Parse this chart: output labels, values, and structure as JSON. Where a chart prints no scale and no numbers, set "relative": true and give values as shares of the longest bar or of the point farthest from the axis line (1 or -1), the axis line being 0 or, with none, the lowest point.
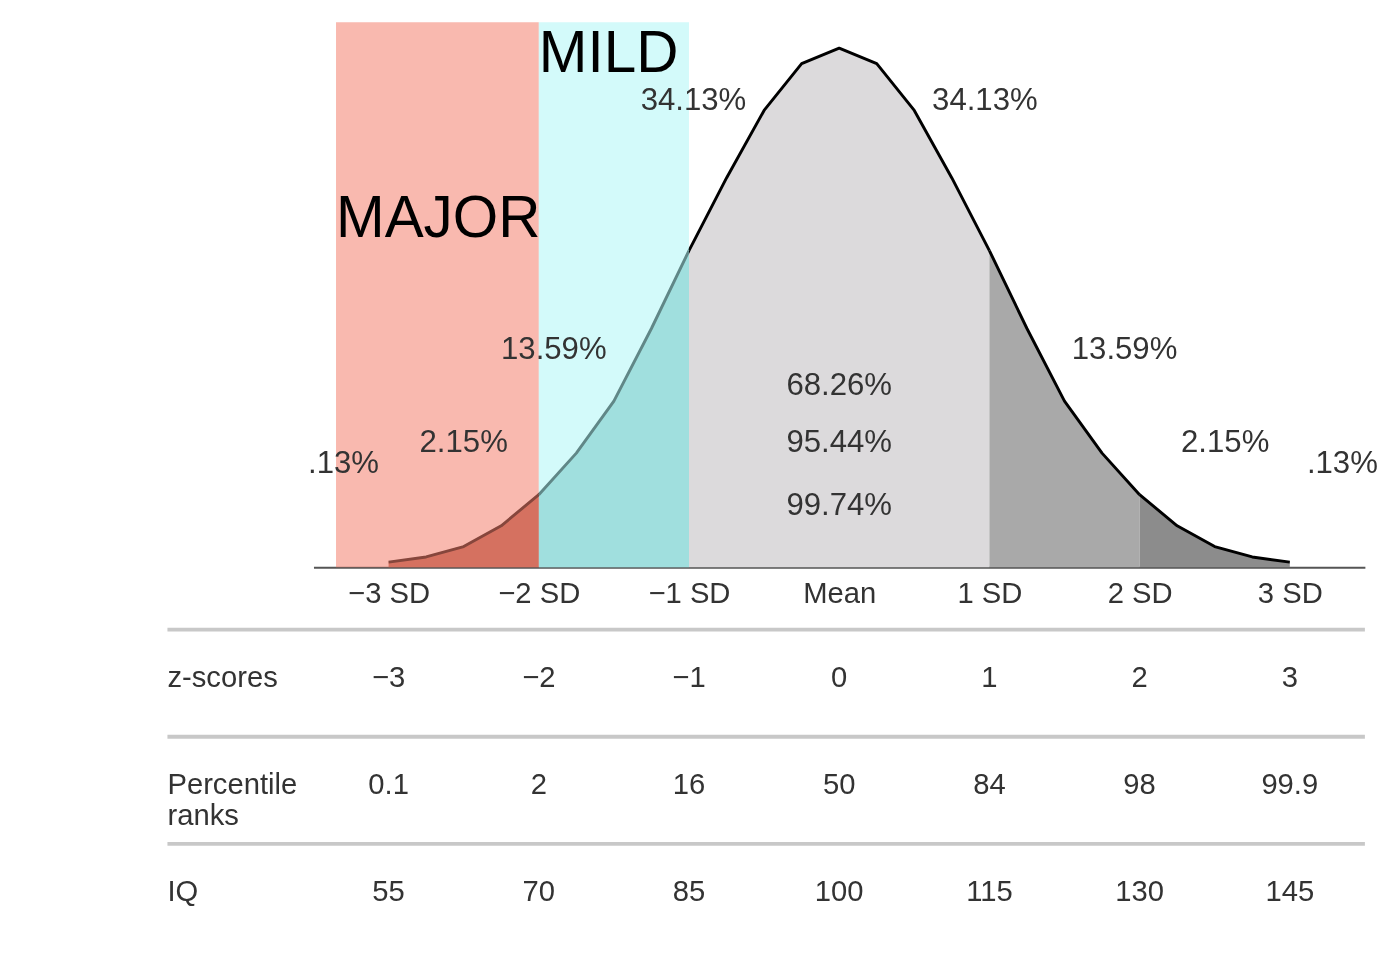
{
  "chart_data": {
    "type": "area",
    "relative": true,
    "xlim": [
      -3.5,
      3.5
    ],
    "xticks": [
      {
        "value": -3,
        "label": "−3 SD"
      },
      {
        "value": -2,
        "label": "−2 SD"
      },
      {
        "value": -1,
        "label": "−1 SD"
      },
      {
        "value": 0,
        "label": "Mean"
      },
      {
        "value": 1,
        "label": "1 SD"
      },
      {
        "value": 2,
        "label": "2 SD"
      },
      {
        "value": 3,
        "label": "3 SD"
      }
    ],
    "series": [
      {
        "color": "#dcdadc",
        "x": [
          -1,
          -0.75,
          -0.5,
          -0.25,
          0,
          0.25,
          0.5,
          0.75,
          1
        ],
        "values": [
          0.61,
          0.75,
          0.88,
          0.97,
          1,
          0.97,
          0.88,
          0.75,
          0.61
        ]
      },
      {
        "color": "#a9a9a9",
        "x": [
          1,
          1.25,
          1.5,
          1.75,
          2
        ],
        "values": [
          0.61,
          0.46,
          0.32,
          0.22,
          0.14
        ]
      },
      {
        "color": "#8c8c8c",
        "x": [
          2,
          2.25,
          2.5,
          2.75,
          3
        ],
        "values": [
          0.14,
          0.08,
          0.04,
          0.02,
          0.01
        ]
      },
      {
        "color": "#8fc4c2",
        "x": [
          -2,
          -1.75,
          -1.5,
          -1.25,
          -1
        ],
        "values": [
          0.14,
          0.22,
          0.32,
          0.46,
          0.61
        ]
      },
      {
        "color": "#b06050",
        "x": [
          -3,
          -2.75,
          -2.5,
          -2.25,
          -2
        ],
        "values": [
          0.01,
          0.02,
          0.04,
          0.08,
          0.14
        ]
      }
    ],
    "bands": [
      {
        "axis": "x",
        "from": -3.35,
        "to": -2,
        "label": "MAJOR",
        "color": "#f4806e"
      },
      {
        "axis": "x",
        "from": -2,
        "to": -1,
        "label": "MILD",
        "color": "#aef5f5"
      }
    ],
    "annotations": [
      "34.13%",
      "34.13%",
      "13.59%",
      "13.59%",
      "2.15%",
      "2.15%",
      ".13%",
      ".13%",
      "68.26%",
      "95.44%",
      "99.74%",
      "z-scores",
      "−3",
      "−2",
      "−1",
      "0",
      "1",
      "2",
      "3",
      "Percentile ranks",
      "0.1",
      "2",
      "16",
      "50",
      "84",
      "98",
      "99.9",
      "IQ",
      "55",
      "70",
      "85",
      "100",
      "115",
      "130",
      "145"
    ]
  }
}
